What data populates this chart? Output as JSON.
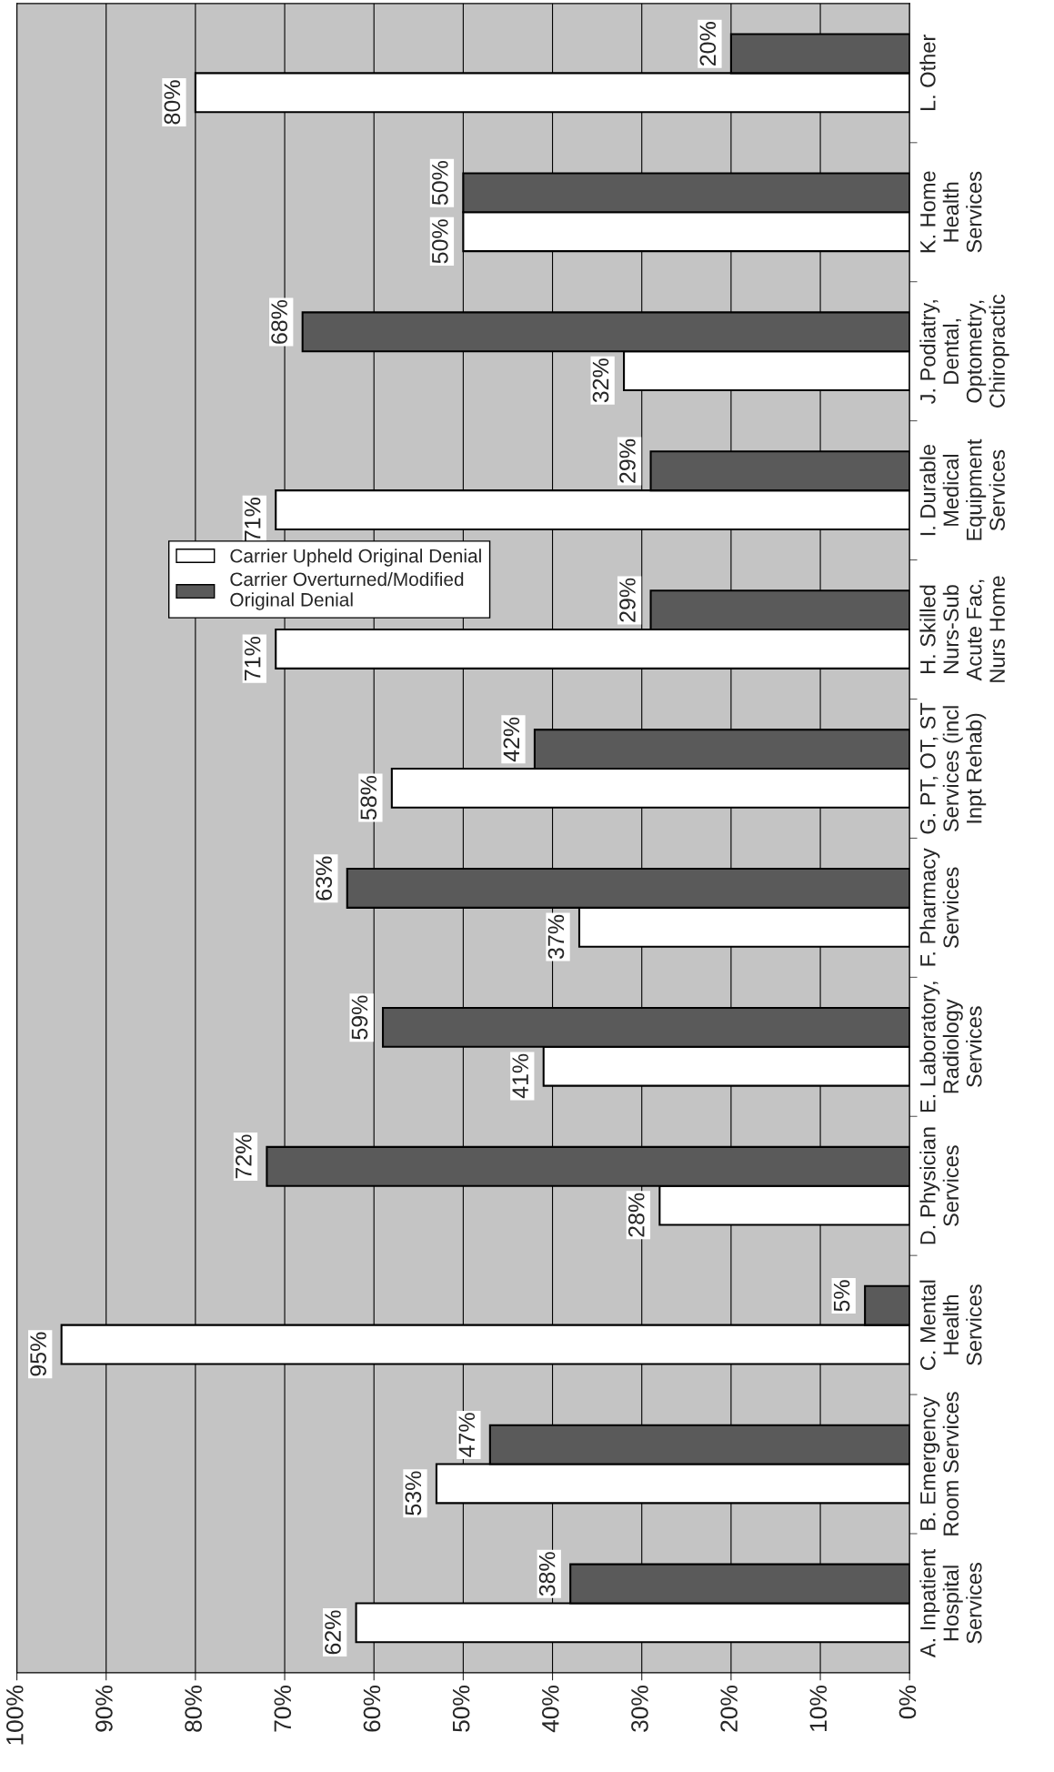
{
  "chart_data": {
    "type": "bar",
    "orientation": "horizontal",
    "categories": [
      "L. Other",
      "K. Home\nHealth\nServices",
      "J. Podiatry,\nDental,\nOptometry,\nChiropractic",
      "I. Durable\nMedical\nEquipment\nServices",
      "H. Skilled\nNurs-Sub\nAcute Fac,\nNurs Home",
      "G. PT, OT, ST\nServices (incl\nInpt Rehab)",
      "F. Pharmacy\nServices",
      "E. Laboratory,\nRadiology\nServices",
      "D. Physician\nServices",
      "C. Mental\nHealth\nServices",
      "B. Emergency\nRoom Services",
      "A. Inpatient\nHospital\nServices"
    ],
    "series": [
      {
        "name": "Carrier Upheld Original Denial",
        "color": "#ffffff",
        "values": [
          80,
          50,
          32,
          71,
          71,
          58,
          37,
          41,
          28,
          95,
          53,
          62
        ]
      },
      {
        "name": "Carrier Overturned/Modified\nOriginal Denial",
        "color": "#5a5a5a",
        "values": [
          20,
          50,
          68,
          29,
          29,
          42,
          63,
          59,
          72,
          5,
          47,
          38
        ]
      }
    ],
    "xlim": [
      100,
      0
    ],
    "xticks": [
      {
        "value": 100,
        "label": "100%"
      },
      {
        "value": 90,
        "label": "90%"
      },
      {
        "value": 80,
        "label": "80%"
      },
      {
        "value": 70,
        "label": "70%"
      },
      {
        "value": 60,
        "label": "60%"
      },
      {
        "value": 50,
        "label": "50%"
      },
      {
        "value": 40,
        "label": "40%"
      },
      {
        "value": 30,
        "label": "30%"
      },
      {
        "value": 20,
        "label": "20%"
      },
      {
        "value": 10,
        "label": "10%"
      },
      {
        "value": 0,
        "label": "0%"
      }
    ],
    "value_labels": [
      [
        "80%",
        "50%",
        "32%",
        "71%",
        "71%",
        "58%",
        "37%",
        "41%",
        "28%",
        "95%",
        "53%",
        "62%"
      ],
      [
        "20%",
        "50%",
        "68%",
        "29%",
        "29%",
        "42%",
        "63%",
        "59%",
        "72%",
        "5%",
        "47%",
        "38%"
      ]
    ],
    "grid": "x",
    "legend": "center"
  }
}
